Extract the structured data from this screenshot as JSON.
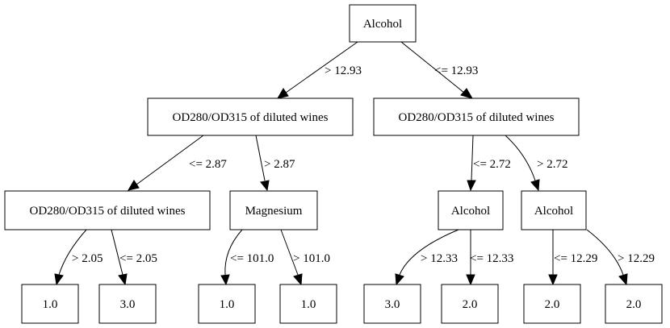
{
  "nodes": {
    "root": "Alcohol",
    "l1_left": "OD280/OD315 of diluted wines",
    "l1_right": "OD280/OD315 of diluted wines",
    "l2_a": "OD280/OD315 of diluted wines",
    "l2_b": "Magnesium",
    "l2_c": "Alcohol",
    "l2_d": "Alcohol",
    "leaf_1": "1.0",
    "leaf_2": "3.0",
    "leaf_3": "1.0",
    "leaf_4": "1.0",
    "leaf_5": "3.0",
    "leaf_6": "2.0",
    "leaf_7": "2.0",
    "leaf_8": "2.0"
  },
  "edges": {
    "root_left": "> 12.93",
    "root_right": "<= 12.93",
    "l1l_left": "<= 2.87",
    "l1l_right": "> 2.87",
    "l1r_left": "<= 2.72",
    "l1r_right": "> 2.72",
    "a_left": "> 2.05",
    "a_right": "<= 2.05",
    "b_left": "<= 101.0",
    "b_right": "> 101.0",
    "c_left": "> 12.33",
    "c_right": "<= 12.33",
    "d_left": "<= 12.29",
    "d_right": "> 12.29"
  }
}
